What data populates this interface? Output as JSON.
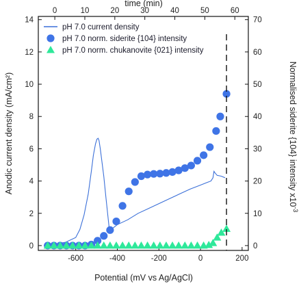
{
  "chart_data": {
    "type": "line",
    "axes": {
      "x_bottom": {
        "label": "Potential (mV vs Ag/AgCl)",
        "range": [
          -780,
          230
        ],
        "ticks": [
          -600,
          -400,
          -200,
          0,
          200
        ],
        "tick_labels": [
          "-600",
          "-400",
          "-200",
          "0",
          "200"
        ]
      },
      "x_top": {
        "label": "time (min)",
        "range": [
          -5.5,
          64.5
        ],
        "ticks": [
          0,
          10,
          20,
          30,
          40,
          50,
          60
        ],
        "tick_labels": [
          "0",
          "10",
          "20",
          "30",
          "40",
          "50",
          "60"
        ]
      },
      "y_left": {
        "label": "Anodic current density (mA/cm²)",
        "range": [
          -0.3,
          14.2
        ],
        "ticks": [
          0,
          2,
          4,
          6,
          8,
          10,
          12,
          14
        ],
        "tick_labels": [
          "0",
          "2",
          "4",
          "6",
          "8",
          "10",
          "12",
          "14"
        ]
      },
      "y_right": {
        "label": "Normalised siderite {104} intensity x10",
        "label_superscript": "-3",
        "range": [
          -1.5,
          71
        ],
        "ticks": [
          0,
          10,
          20,
          30,
          40,
          50,
          60,
          70
        ],
        "tick_labels": [
          "0",
          "10",
          "20",
          "30",
          "40",
          "50",
          "60",
          "70"
        ]
      }
    },
    "series": [
      {
        "name": "pH 7.0 current density",
        "kind": "line",
        "axis": "left",
        "color": "#3a6fd8",
        "x": [
          -740,
          -700,
          -650,
          -600,
          -580,
          -560,
          -540,
          -525,
          -515,
          -505,
          -498,
          -492,
          -488,
          -482,
          -475,
          -465,
          -455,
          -445,
          -440,
          -436,
          -425,
          -400,
          -350,
          -300,
          -250,
          -200,
          -150,
          -100,
          -50,
          0,
          30,
          50,
          60,
          65,
          70,
          80,
          100,
          110,
          118
        ],
        "y": [
          0.05,
          0.1,
          0.2,
          0.5,
          1.0,
          1.9,
          3.2,
          4.6,
          5.6,
          6.3,
          6.6,
          6.65,
          6.5,
          6.0,
          5.3,
          4.3,
          3.0,
          1.8,
          1.2,
          1.0,
          1.05,
          1.3,
          1.6,
          2.0,
          2.3,
          2.6,
          2.9,
          3.2,
          3.5,
          3.75,
          3.9,
          4.0,
          4.2,
          4.6,
          4.5,
          4.35,
          4.3,
          4.25,
          4.2
        ]
      },
      {
        "name": "pH 7.0 norm. siderite {104} intensity",
        "kind": "scatter",
        "marker": "circle",
        "axis": "right",
        "color": "#3f74e6",
        "x": [
          -735,
          -705,
          -675,
          -645,
          -615,
          -585,
          -555,
          -525,
          -495,
          -465,
          -435,
          -405,
          -375,
          -345,
          -315,
          -285,
          -255,
          -225,
          -195,
          -165,
          -135,
          -105,
          -75,
          -45,
          -15,
          15,
          45,
          75,
          95,
          125
        ],
        "y": [
          0,
          0,
          0,
          0,
          0,
          0,
          0,
          0.3,
          1.5,
          3.0,
          4.8,
          7.5,
          12.3,
          16.8,
          19.7,
          21.5,
          22.0,
          22.2,
          22.3,
          22.5,
          22.8,
          23.3,
          24.0,
          24.8,
          26.3,
          28.0,
          30.5,
          35.5,
          40.0,
          47.0
        ]
      },
      {
        "name": "pH 7.0 norm. chukanovite {021}  intensity",
        "kind": "scatter",
        "marker": "triangle",
        "axis": "right",
        "color": "#2ee89a",
        "x": [
          -735,
          -705,
          -675,
          -645,
          -615,
          -585,
          -555,
          -525,
          -495,
          -465,
          -435,
          -405,
          -375,
          -345,
          -315,
          -285,
          -255,
          -225,
          -195,
          -165,
          -135,
          -105,
          -75,
          -45,
          -15,
          15,
          40,
          60,
          80,
          100,
          125
        ],
        "y": [
          0,
          0,
          0,
          0,
          0,
          0,
          0,
          0,
          0,
          0,
          0,
          0,
          0,
          0,
          0,
          0,
          0,
          0,
          0,
          0,
          0,
          0,
          0,
          0,
          0,
          0,
          0.2,
          0.8,
          2.5,
          4.0,
          5.2
        ]
      }
    ],
    "marker_line_x": 125,
    "legend_position": "top-left",
    "grid": false
  }
}
